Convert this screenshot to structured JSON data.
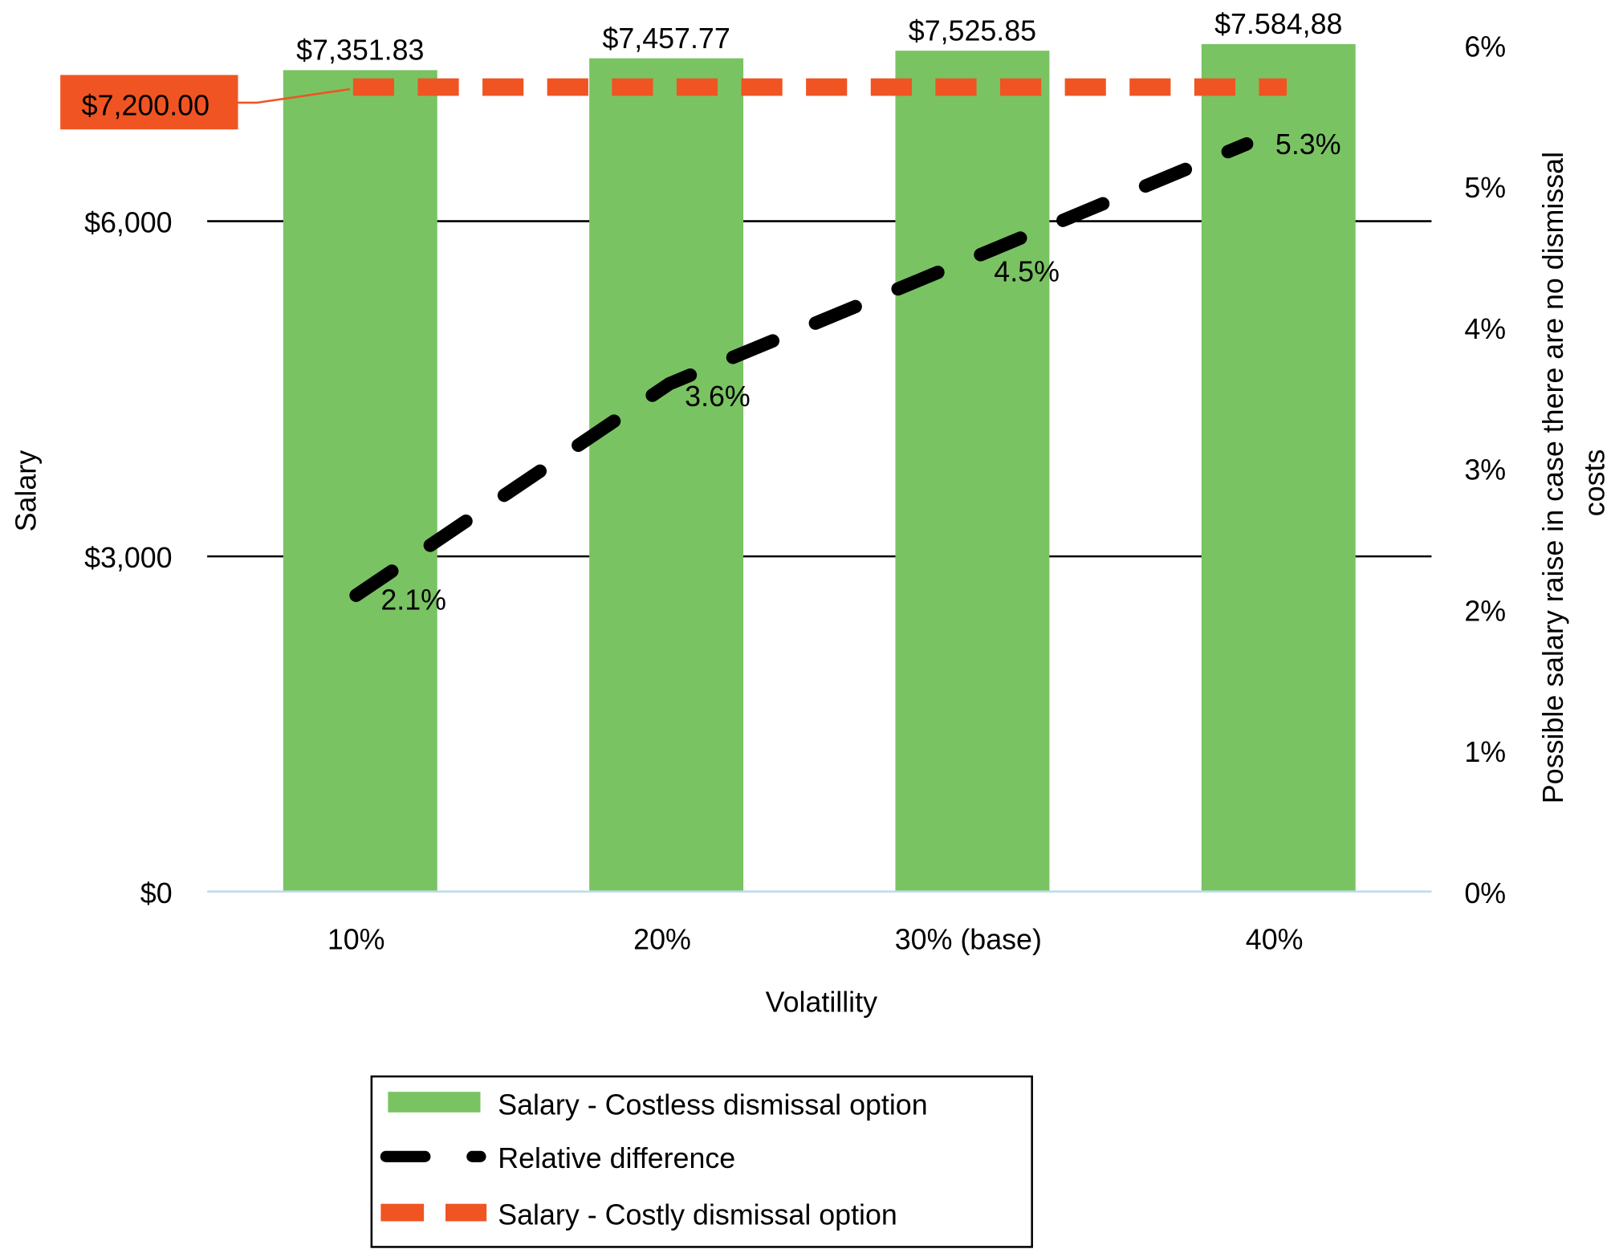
{
  "chart_data": {
    "type": "bar",
    "categories": [
      "10%",
      "20%",
      "30% (base)",
      "40%"
    ],
    "xlabel": "Volatillity",
    "ylabel": "Salary",
    "y2label_lines": [
      "Possible salary raise in case there are no dismissal",
      "costs"
    ],
    "ylim": [
      0,
      7575
    ],
    "y_ticks": [
      {
        "value": 0,
        "label": "$0"
      },
      {
        "value": 3000,
        "label": "$3,000"
      },
      {
        "value": 6000,
        "label": "$6,000"
      }
    ],
    "y2lim": [
      0,
      6
    ],
    "y2_ticks": [
      "0%",
      "1%",
      "2%",
      "3%",
      "4%",
      "5%",
      "6%"
    ],
    "grid": true,
    "legend_position": "bottom",
    "series": [
      {
        "name": "Salary - Costless dismissal option",
        "kind": "bar",
        "axis": "left",
        "color": "#7AC363",
        "values": [
          7351.83,
          7457.77,
          7525.85,
          7584.88
        ],
        "labels": [
          "$7,351.83",
          "$7,457.77",
          "$7,525.85",
          "$7.584,88"
        ]
      },
      {
        "name": "Relative difference",
        "kind": "line-dashed",
        "axis": "right",
        "color": "#000000",
        "values": [
          2.1,
          3.6,
          4.5,
          5.3
        ],
        "labels": [
          "2.1%",
          "3.6%",
          "4.5%",
          "5.3%"
        ]
      },
      {
        "name": "Salary - Costly dismissal option",
        "kind": "line-dashed",
        "axis": "left",
        "color": "#F05423",
        "value": 7200,
        "label": "$7,200.00"
      }
    ]
  }
}
